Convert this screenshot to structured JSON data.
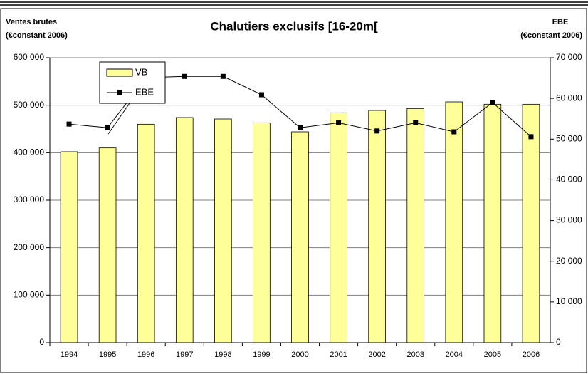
{
  "chart_data": {
    "type": "bar-line",
    "title": "Chalutiers exclusifs [16-20m[",
    "ylabel": [
      "Ventes brutes",
      "(€constant 2006)"
    ],
    "y2label": [
      "EBE",
      "(€constant 2006)"
    ],
    "categories": [
      "1994",
      "1995",
      "1996",
      "1997",
      "1998",
      "1999",
      "2000",
      "2001",
      "2002",
      "2003",
      "2004",
      "2005",
      "2006"
    ],
    "series": [
      {
        "name": "VB",
        "type": "bar",
        "color": "#ffff99",
        "values": [
          402000,
          410000,
          460000,
          474000,
          471000,
          463000,
          444000,
          484000,
          489000,
          493000,
          507000,
          502000,
          502000
        ]
      },
      {
        "name": "EBE",
        "type": "line",
        "axis": "y2",
        "color": "#000000",
        "values": [
          53700,
          52800,
          65100,
          65400,
          65400,
          60900,
          52800,
          54000,
          52000,
          54000,
          51800,
          59000,
          50600
        ]
      }
    ],
    "ylim": [
      0,
      600000
    ],
    "yticks": [
      {
        "value": 0,
        "label": "0"
      },
      {
        "value": 100000,
        "label": "100 000"
      },
      {
        "value": 200000,
        "label": "200 000"
      },
      {
        "value": 300000,
        "label": "300 000"
      },
      {
        "value": 400000,
        "label": "400 000"
      },
      {
        "value": 500000,
        "label": "500 000"
      },
      {
        "value": 600000,
        "label": "600 000"
      }
    ],
    "y2lim": [
      0,
      70000
    ],
    "y2ticks": [
      {
        "value": 0,
        "label": "0"
      },
      {
        "value": 10000,
        "label": "10 000"
      },
      {
        "value": 20000,
        "label": "20 000"
      },
      {
        "value": 30000,
        "label": "30 000"
      },
      {
        "value": 40000,
        "label": "40 000"
      },
      {
        "value": 50000,
        "label": "50 000"
      },
      {
        "value": 60000,
        "label": "60 000"
      },
      {
        "value": 70000,
        "label": "70 000"
      }
    ],
    "grid": true,
    "legend": "top-left"
  }
}
